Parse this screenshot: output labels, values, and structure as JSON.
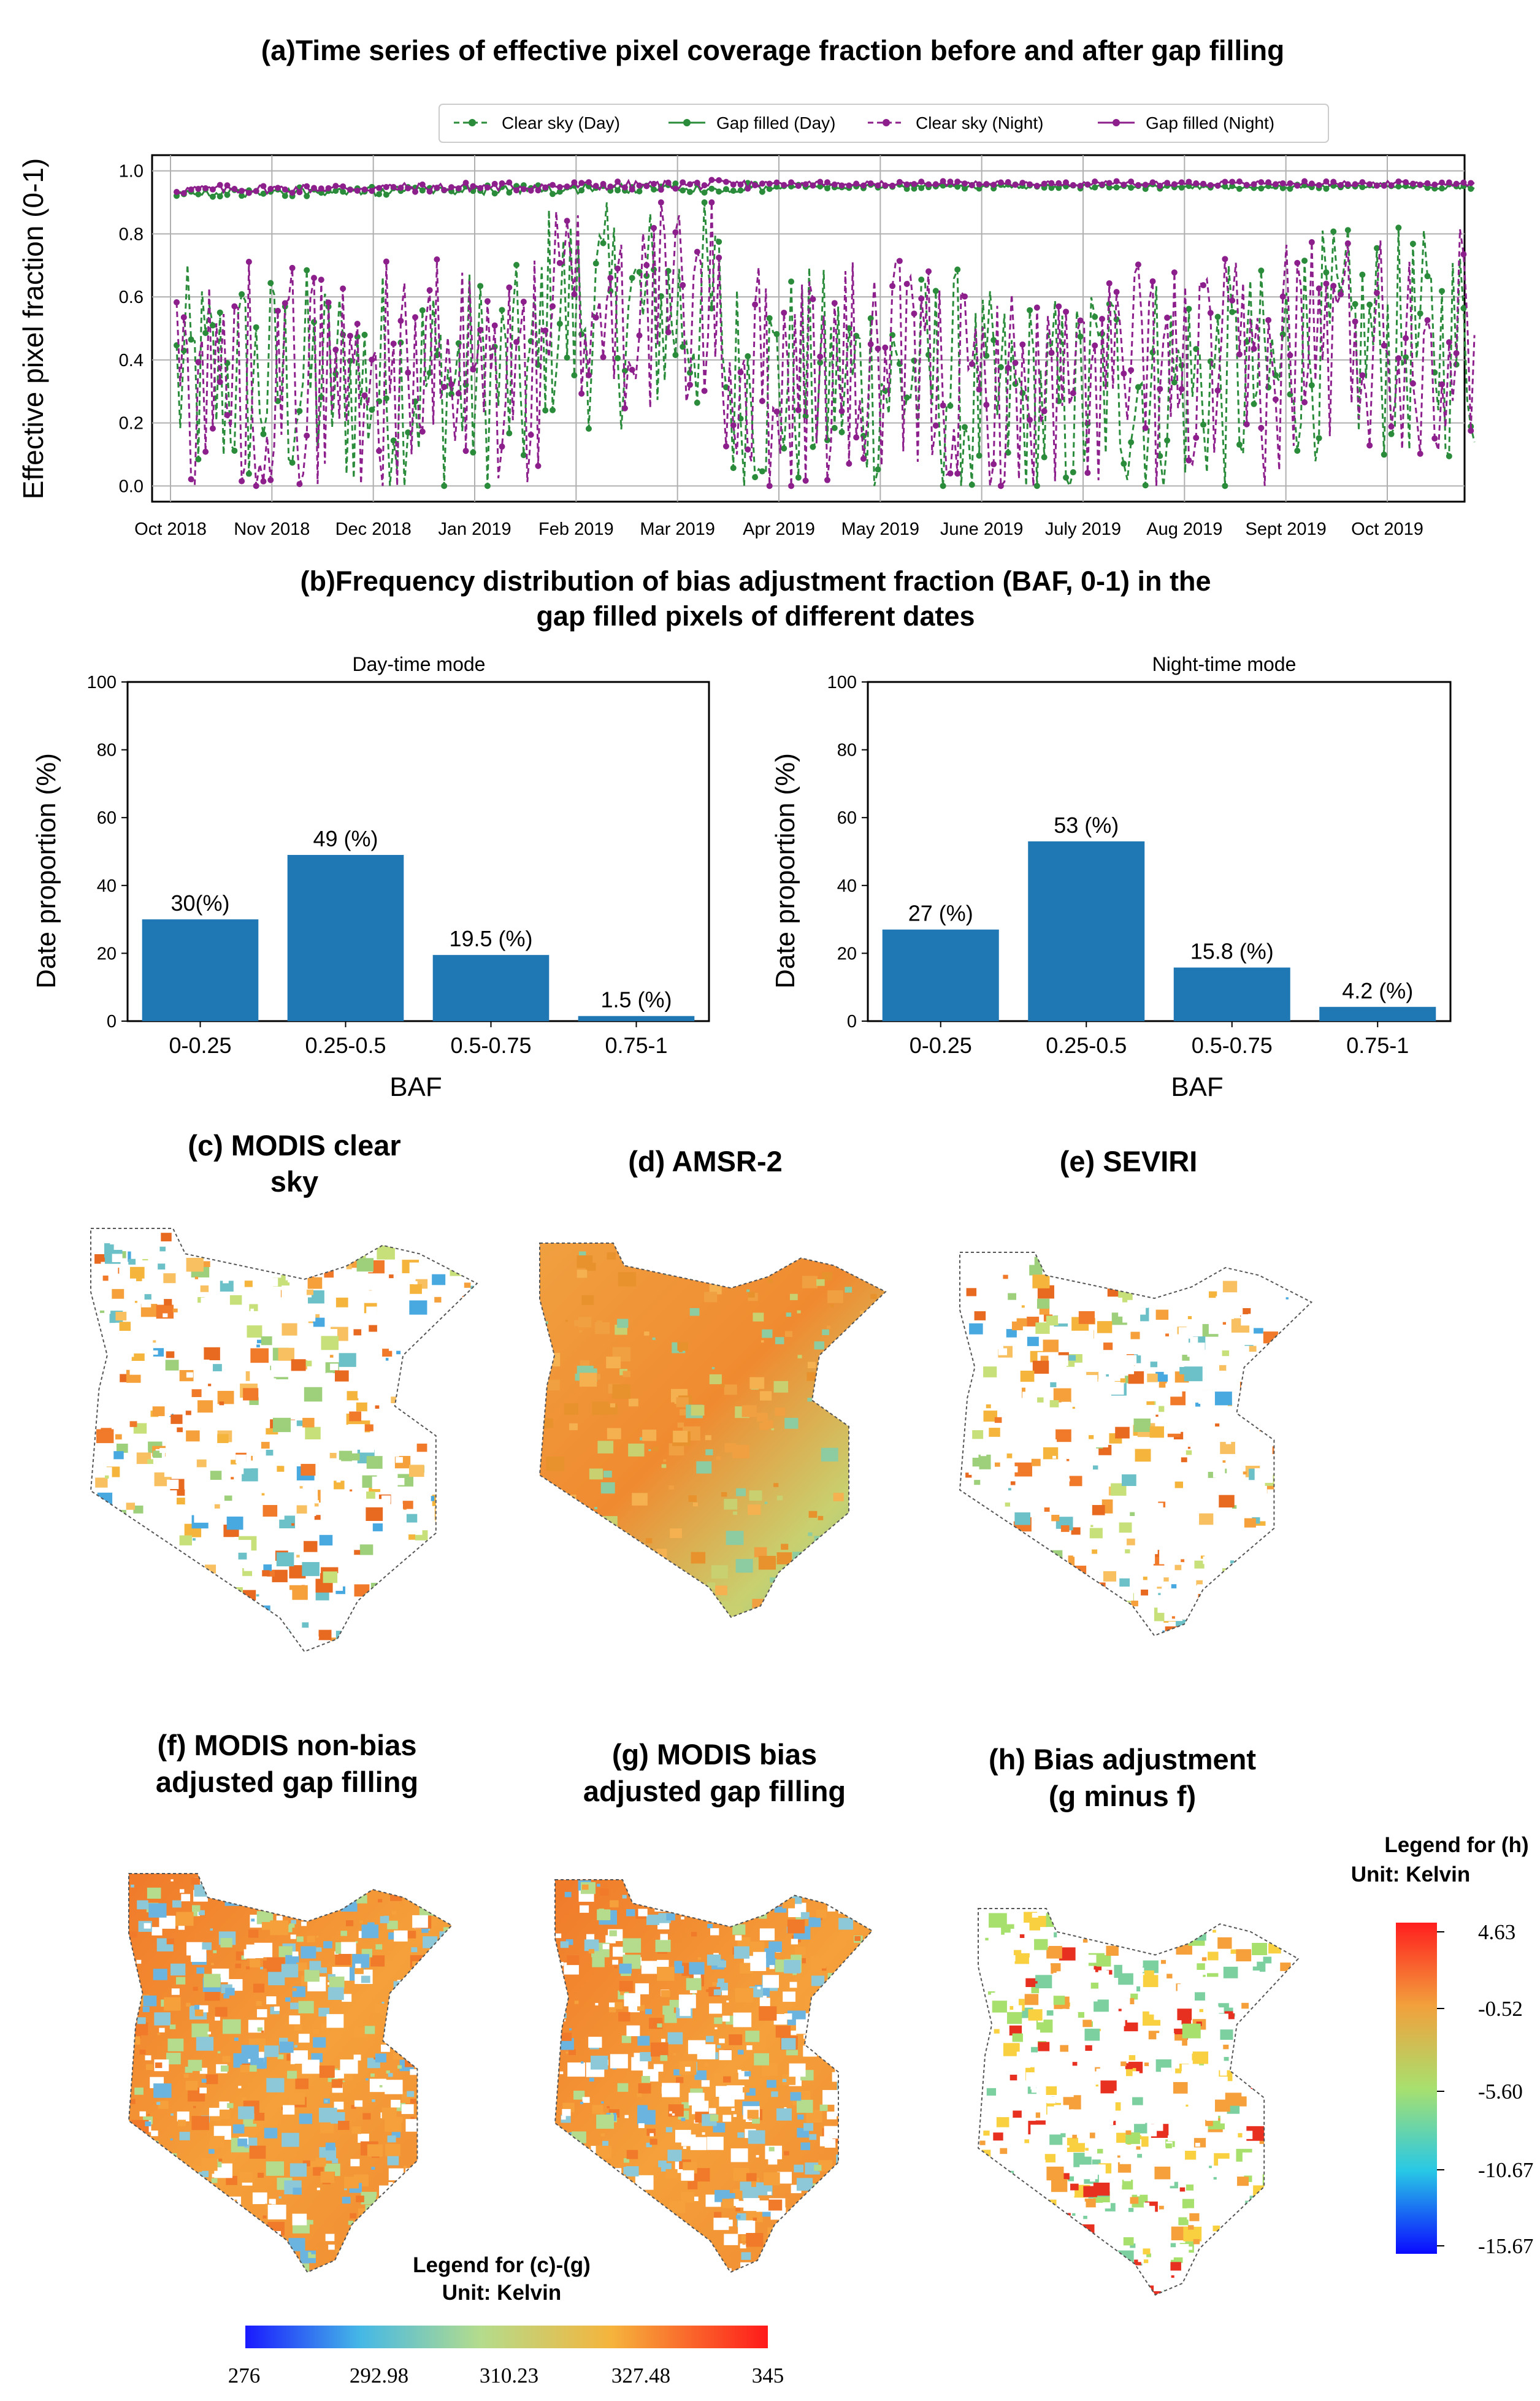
{
  "colors": {
    "day": "#2a8c3a",
    "night": "#8c1f8c",
    "bar": "#1f77b4",
    "grid": "#b0b0b0"
  },
  "panel_a": {
    "title": "(a)Time series of effective pixel coverage fraction before and after gap filling",
    "ylabel": "Effective pixel fraction (0-1)",
    "yticks": [
      "0.0",
      "0.2",
      "0.4",
      "0.6",
      "0.8",
      "1.0"
    ],
    "xticks": [
      "Oct 2018",
      "Nov 2018",
      "Dec 2018",
      "Jan 2019",
      "Feb 2019",
      "Mar 2019",
      "Apr 2019",
      "May 2019",
      "June 2019",
      "July 2019",
      "Aug 2019",
      "Sept 2019",
      "Oct 2019"
    ],
    "legend": [
      "Clear sky (Day)",
      "Gap filled (Day)",
      "Clear sky (Night)",
      "Gap filled (Night)"
    ]
  },
  "panel_b": {
    "title_line1": "(b)Frequency distribution of bias adjustment fraction (BAF, 0-1) in the",
    "title_line2": "gap filled pixels of different dates",
    "ylabel": "Date proportion (%)",
    "xlabel": "BAF",
    "yticks": [
      "0",
      "20",
      "40",
      "60",
      "80",
      "100"
    ],
    "day_title": "Day-time mode",
    "night_title": "Night-time mode",
    "day_labels": [
      "30(%)",
      "49 (%)",
      "19.5 (%)",
      "1.5 (%)"
    ],
    "night_labels": [
      "27 (%)",
      "53 (%)",
      "15.8 (%)",
      "4.2 (%)"
    ]
  },
  "chart_data": [
    {
      "type": "line",
      "title": "(a)Time series of effective pixel coverage fraction before and after gap filling",
      "ylabel": "Effective pixel fraction (0-1)",
      "xlabel": "",
      "ylim": [
        0,
        1
      ],
      "x_range": [
        "Oct 2018",
        "Oct 2019"
      ],
      "grid": true,
      "legend_position": "top",
      "series": [
        {
          "name": "Clear sky (Day)",
          "style": "dashed-markers",
          "summary": "daily values fluctuating roughly between 0.0 and 0.85"
        },
        {
          "name": "Gap filled (Day)",
          "style": "solid-markers",
          "summary": "near constant around 0.93-0.96"
        },
        {
          "name": "Clear sky (Night)",
          "style": "dashed-markers",
          "summary": "daily values fluctuating roughly between 0.0 and 0.9"
        },
        {
          "name": "Gap filled (Night)",
          "style": "solid-markers",
          "summary": "near constant around 0.93-0.97"
        }
      ]
    },
    {
      "type": "bar",
      "title": "Day-time mode",
      "xlabel": "BAF",
      "ylabel": "Date proportion (%)",
      "ylim": [
        0,
        100
      ],
      "categories": [
        "0-0.25",
        "0.25-0.5",
        "0.5-0.75",
        "0.75-1"
      ],
      "values": [
        30,
        49,
        19.5,
        1.5
      ]
    },
    {
      "type": "bar",
      "title": "Night-time mode",
      "xlabel": "BAF",
      "ylabel": "Date proportion (%)",
      "ylim": [
        0,
        100
      ],
      "categories": [
        "0-0.25",
        "0.25-0.5",
        "0.5-0.75",
        "0.75-1"
      ],
      "values": [
        27,
        53,
        15.8,
        4.2
      ]
    }
  ],
  "maps": {
    "c_title": [
      "(c) MODIS clear",
      "sky"
    ],
    "d_title": [
      "(d) AMSR-2"
    ],
    "e_title": [
      "(e) SEVIRI"
    ],
    "f_title": [
      "(f) MODIS non-bias",
      "adjusted gap filling"
    ],
    "g_title": [
      "(g) MODIS bias",
      "adjusted gap filling"
    ],
    "h_title": [
      "(h) Bias adjustment",
      "(g minus f)"
    ]
  },
  "legend_h": {
    "title_line1": "Legend for (h)",
    "title_line2": "Unit: Kelvin",
    "ticks": [
      "4.63",
      "-0.52",
      "-5.60",
      "-10.67",
      "-15.67"
    ]
  },
  "legend_cg": {
    "title_line1": "Legend for (c)-(g)",
    "title_line2": "Unit: Kelvin",
    "ticks": [
      "276",
      "292.98",
      "310.23",
      "327.48",
      "345"
    ]
  }
}
